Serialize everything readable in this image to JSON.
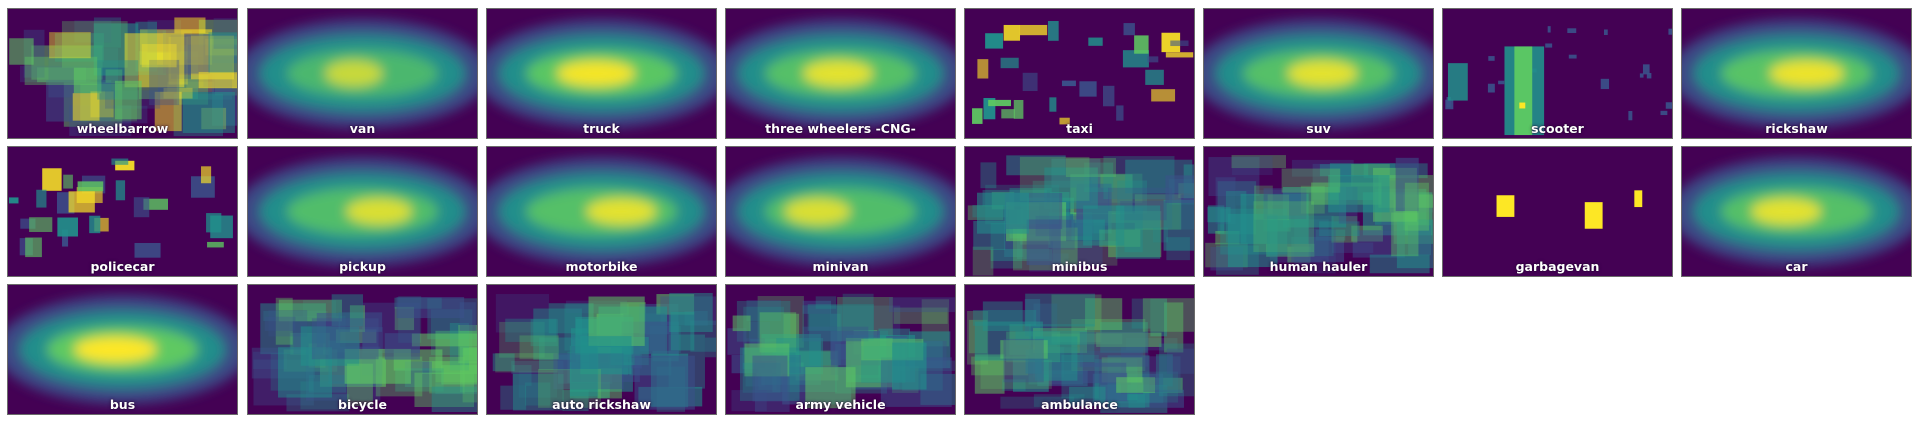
{
  "colormap": [
    "#440154",
    "#3b528b",
    "#21918c",
    "#5ec962",
    "#fde725"
  ],
  "tiles": [
    {
      "label": "wheelbarrow",
      "pattern": "blocky",
      "intensity": 0.75
    },
    {
      "label": "van",
      "pattern": "smooth",
      "intensity": 0.7
    },
    {
      "label": "truck",
      "pattern": "smooth",
      "intensity": 0.95
    },
    {
      "label": "three wheelers -CNG-",
      "pattern": "smooth",
      "intensity": 0.85
    },
    {
      "label": "taxi",
      "pattern": "sparse",
      "intensity": 0.5
    },
    {
      "label": "suv",
      "pattern": "smooth",
      "intensity": 0.85
    },
    {
      "label": "scooter",
      "pattern": "scooter",
      "intensity": 0.6
    },
    {
      "label": "rickshaw",
      "pattern": "smooth",
      "intensity": 0.9
    },
    {
      "label": "policecar",
      "pattern": "sparse",
      "intensity": 0.45
    },
    {
      "label": "pickup",
      "pattern": "smooth",
      "intensity": 0.8
    },
    {
      "label": "motorbike",
      "pattern": "smooth",
      "intensity": 0.85
    },
    {
      "label": "minivan",
      "pattern": "smooth",
      "intensity": 0.8
    },
    {
      "label": "minibus",
      "pattern": "blocky",
      "intensity": 0.6
    },
    {
      "label": "human hauler",
      "pattern": "blocky",
      "intensity": 0.6
    },
    {
      "label": "garbagevan",
      "pattern": "garbage",
      "intensity": 1.0
    },
    {
      "label": "car",
      "pattern": "smooth",
      "intensity": 0.85
    },
    {
      "label": "bus",
      "pattern": "smooth",
      "intensity": 1.0
    },
    {
      "label": "bicycle",
      "pattern": "blocky",
      "intensity": 0.55
    },
    {
      "label": "auto rickshaw",
      "pattern": "blocky",
      "intensity": 0.55
    },
    {
      "label": "army vehicle",
      "pattern": "blocky",
      "intensity": 0.5
    },
    {
      "label": "ambulance",
      "pattern": "blocky",
      "intensity": 0.45
    }
  ]
}
